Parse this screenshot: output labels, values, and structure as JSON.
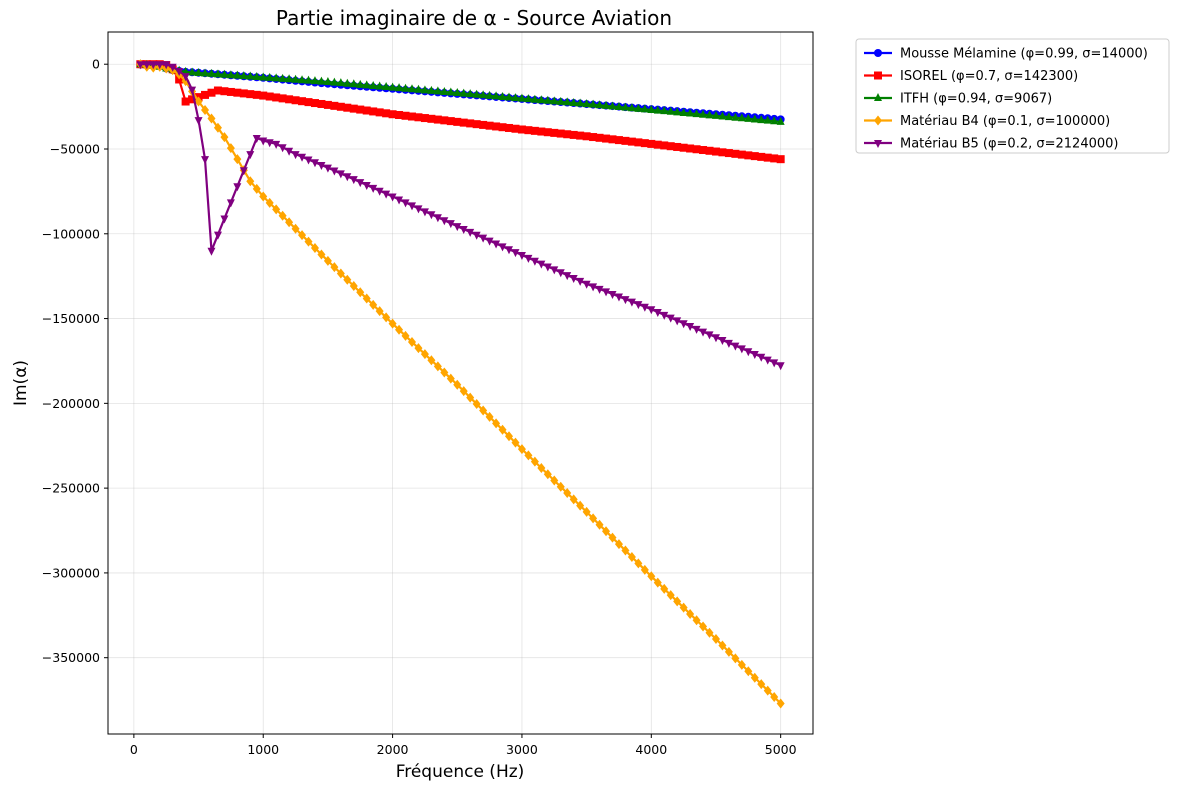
{
  "chart_data": {
    "type": "line",
    "title": "Partie imaginaire de α - Source Aviation",
    "xlabel": "Fréquence (Hz)",
    "ylabel": "Im(α)",
    "xlim": [
      -200,
      5250
    ],
    "ylim": [
      -395000,
      19000
    ],
    "xticks": [
      0,
      1000,
      2000,
      3000,
      4000,
      5000
    ],
    "yticks": [
      0,
      -50000,
      -100000,
      -150000,
      -200000,
      -250000,
      -300000,
      -350000
    ],
    "x_tick_labels": [
      "0",
      "1000",
      "2000",
      "3000",
      "4000",
      "5000"
    ],
    "y_tick_labels": [
      "0",
      "−50000",
      "−100000",
      "−150000",
      "−200000",
      "−250000",
      "−300000",
      "−350000"
    ],
    "grid": true,
    "legend_position": "outside-top-right",
    "series": [
      {
        "name": "Mousse Mélamine (φ=0.99, σ=14000)",
        "color": "#0000ff",
        "marker": "circle",
        "x": [
          50,
          100,
          150,
          200,
          250,
          300,
          400,
          500,
          1000,
          1500,
          2000,
          2500,
          3000,
          3500,
          4000,
          4500,
          5000
        ],
        "y": [
          -200,
          -400,
          -600,
          -1000,
          -2500,
          -3500,
          -4500,
          -5000,
          -8000,
          -11500,
          -14500,
          -17500,
          -20500,
          -23500,
          -26500,
          -29500,
          -32500
        ]
      },
      {
        "name": "ISOREL (φ=0.7, σ=142300)",
        "color": "#ff0000",
        "marker": "square",
        "x": [
          50,
          100,
          150,
          200,
          250,
          300,
          350,
          400,
          650,
          1000,
          1500,
          2000,
          2500,
          3000,
          3500,
          4000,
          4500,
          5000
        ],
        "y": [
          0,
          0,
          0,
          0,
          -500,
          -3000,
          -9000,
          -22000,
          -15500,
          -18500,
          -24000,
          -29500,
          -34000,
          -38500,
          -42500,
          -47000,
          -51500,
          -56000
        ]
      },
      {
        "name": "ITFH (φ=0.94, σ=9067)",
        "color": "#008000",
        "marker": "triangle-up",
        "x": [
          50,
          100,
          150,
          200,
          250,
          300,
          400,
          500,
          1000,
          1500,
          2000,
          2500,
          3000,
          3500,
          4000,
          4500,
          5000
        ],
        "y": [
          0,
          -500,
          -1000,
          -1500,
          -2500,
          -3200,
          -4500,
          -5200,
          -7800,
          -10500,
          -13800,
          -17000,
          -20300,
          -23500,
          -27000,
          -30500,
          -34000
        ]
      },
      {
        "name": "Matériau B4 (φ=0.1, σ=100000)",
        "color": "#ffa500",
        "marker": "diamond",
        "x": [
          50,
          100,
          150,
          200,
          250,
          300,
          350,
          400,
          450,
          500,
          600,
          700,
          800,
          900,
          1000,
          1500,
          2000,
          2500,
          3000,
          3500,
          4000,
          4500,
          5000
        ],
        "y": [
          0,
          -1500,
          -2000,
          -1500,
          -2500,
          -3500,
          -6000,
          -10000,
          -16000,
          -22000,
          -32000,
          -43000,
          -56000,
          -69000,
          -78000,
          -116000,
          -153000,
          -189000,
          -227000,
          -264000,
          -302000,
          -339000,
          -377000
        ]
      },
      {
        "name": "Matériau B5 (φ=0.2, σ=2124000)",
        "color": "#800080",
        "marker": "triangle-down",
        "x": [
          50,
          100,
          150,
          200,
          250,
          300,
          350,
          400,
          450,
          500,
          550,
          600,
          950,
          1000,
          1100,
          1250,
          1500,
          2000,
          2500,
          3000,
          3500,
          4000,
          4500,
          5000
        ],
        "y": [
          0,
          0,
          0,
          0,
          0,
          -1500,
          -4000,
          -7000,
          -15000,
          -33000,
          -56000,
          -110000,
          -43500,
          -45000,
          -47000,
          -53000,
          -61000,
          -78000,
          -95500,
          -112500,
          -129500,
          -144500,
          -161000,
          -177500
        ]
      }
    ]
  }
}
